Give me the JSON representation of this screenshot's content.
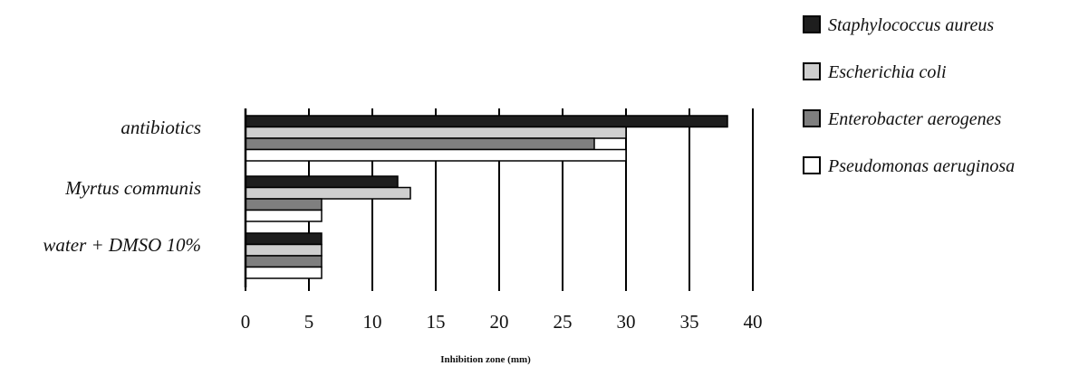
{
  "chart_data": {
    "type": "bar",
    "orientation": "horizontal",
    "categories": [
      "antibiotics",
      "Myrtus communis",
      "water + DMSO 10%"
    ],
    "series": [
      {
        "name": "Staphylococcus aureus",
        "color": "#1e1e1e",
        "values": [
          38,
          12,
          6
        ]
      },
      {
        "name": "Escherichia coli",
        "color": "#cfcfcf",
        "values": [
          30,
          13,
          6
        ]
      },
      {
        "name": "Enterobacter aerogenes",
        "color": "#7f7f7f",
        "values": [
          27.5,
          6,
          6
        ]
      },
      {
        "name": "Pseudomonas aeruginosa",
        "color": "#ffffff",
        "values": [
          30,
          6,
          6
        ]
      }
    ],
    "xlabel": "Inhibition zone (mm)",
    "ylabel": "",
    "xlim": [
      0,
      40
    ],
    "xticks": [
      0,
      5,
      10,
      15,
      20,
      25,
      30,
      35,
      40
    ],
    "grid": "vertical",
    "legend_position": "top-right"
  }
}
